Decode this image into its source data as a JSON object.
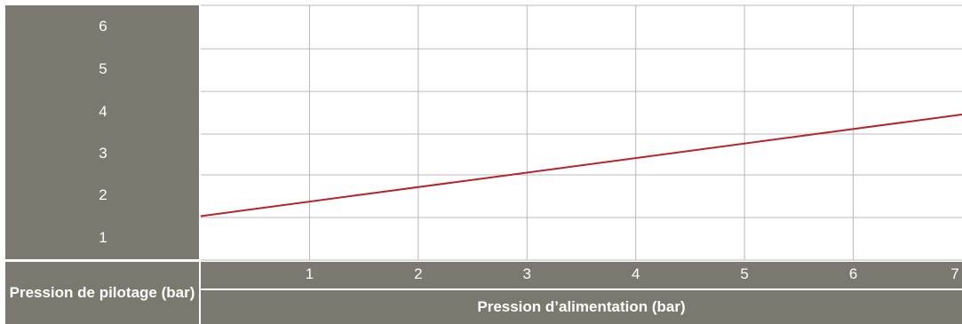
{
  "chart_data": {
    "type": "line",
    "xlabel": "Pression d’alimentation (bar)",
    "ylabel": "Pression de pilotage (bar)",
    "x_ticks": [
      "1",
      "2",
      "3",
      "4",
      "5",
      "6",
      "7"
    ],
    "y_ticks": [
      "1",
      "2",
      "3",
      "4",
      "5",
      "6"
    ],
    "xlim": [
      0,
      7
    ],
    "grid": true,
    "series": [
      {
        "x": [
          0,
          7
        ],
        "y": [
          1.55,
          3.5
        ]
      }
    ],
    "colors": {
      "line": "#b5242b",
      "panel": "#7a786f",
      "grid": "#b8b8b8"
    }
  }
}
